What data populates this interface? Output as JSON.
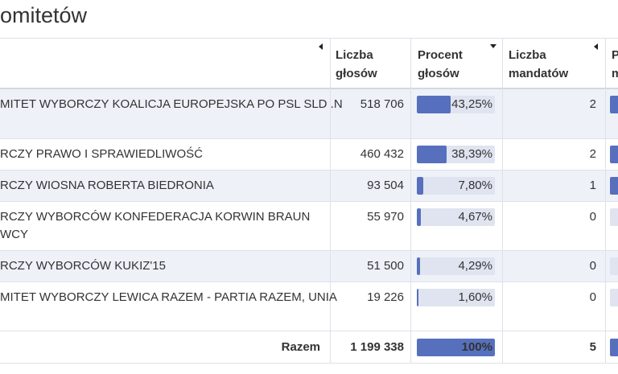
{
  "title": "omitetów",
  "table": {
    "headers": [
      [
        "Liczba",
        "głosów"
      ],
      [
        "Procent",
        "głosów"
      ],
      [
        "Liczba",
        "mandatów"
      ],
      [
        "P",
        "m"
      ]
    ],
    "rows": [
      {
        "name_lines": [
          "MITET WYBORCZY KOALICJA EUROPEJSKA PO PSL SLD .N"
        ],
        "votes": "518 706",
        "percent": {
          "value": 43.25,
          "label": "43,25%"
        },
        "mandates": "2"
      },
      {
        "name_lines": [
          "RCZY PRAWO I SPRAWIEDLIWOŚĆ"
        ],
        "votes": "460 432",
        "percent": {
          "value": 38.39,
          "label": "38,39%"
        },
        "mandates": "2"
      },
      {
        "name_lines": [
          "RCZY WIOSNA ROBERTA BIEDRONIA"
        ],
        "votes": "93 504",
        "percent": {
          "value": 7.8,
          "label": "7,80%"
        },
        "mandates": "1"
      },
      {
        "name_lines": [
          "RCZY WYBORCÓW KONFEDERACJA KORWIN BRAUN",
          "WCY"
        ],
        "votes": "55 970",
        "percent": {
          "value": 4.67,
          "label": "4,67%"
        },
        "mandates": "0"
      },
      {
        "name_lines": [
          "RCZY WYBORCÓW KUKIZ'15"
        ],
        "votes": "51 500",
        "percent": {
          "value": 4.29,
          "label": "4,29%"
        },
        "mandates": "0"
      },
      {
        "name_lines": [
          "MITET WYBORCZY LEWICA RAZEM - PARTIA RAZEM, UNIA"
        ],
        "votes": "19 226",
        "percent": {
          "value": 1.6,
          "label": "1,60%"
        },
        "mandates": "0"
      }
    ],
    "footer": {
      "label": "Razem",
      "votes": "1 199 338",
      "percent": {
        "value": 100,
        "label": "100%"
      },
      "mandates": "5"
    }
  }
}
